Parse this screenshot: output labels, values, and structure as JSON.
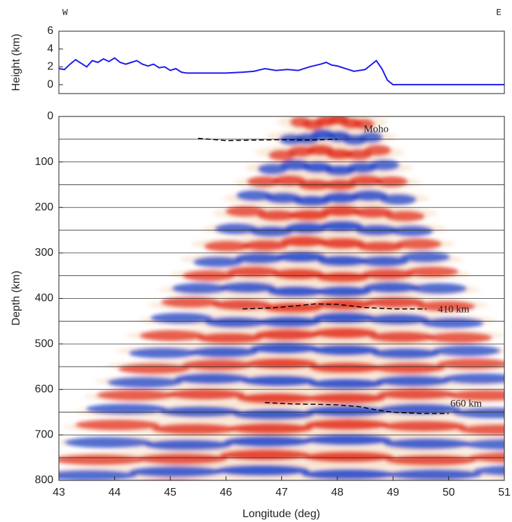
{
  "chart_data": [
    {
      "type": "line",
      "ylabel": "Height (km)",
      "annotations": [
        "W",
        "E"
      ],
      "xlim": [
        43,
        51
      ],
      "ylim": [
        -1,
        6
      ],
      "yticks": [
        0,
        2,
        4,
        6
      ],
      "color": "#1a1aee",
      "x": [
        43.0,
        43.1,
        43.2,
        43.3,
        43.4,
        43.5,
        43.6,
        43.7,
        43.8,
        43.9,
        44.0,
        44.1,
        44.2,
        44.3,
        44.4,
        44.5,
        44.6,
        44.7,
        44.8,
        44.9,
        45.0,
        45.1,
        45.2,
        45.3,
        45.5,
        46.0,
        46.3,
        46.5,
        46.7,
        46.9,
        47.1,
        47.3,
        47.5,
        47.7,
        47.8,
        47.9,
        48.0,
        48.2,
        48.3,
        48.5,
        48.6,
        48.7,
        48.8,
        48.9,
        49.0,
        51.0
      ],
      "values": [
        1.8,
        1.7,
        2.3,
        2.8,
        2.4,
        2.0,
        2.7,
        2.5,
        2.9,
        2.6,
        3.0,
        2.5,
        2.3,
        2.5,
        2.7,
        2.3,
        2.1,
        2.3,
        1.9,
        2.0,
        1.6,
        1.8,
        1.4,
        1.3,
        1.3,
        1.3,
        1.4,
        1.5,
        1.8,
        1.6,
        1.7,
        1.6,
        2.0,
        2.3,
        2.5,
        2.2,
        2.1,
        1.7,
        1.5,
        1.7,
        2.2,
        2.7,
        1.8,
        0.5,
        0,
        0
      ]
    },
    {
      "type": "image",
      "xlabel": "Longitude (deg)",
      "ylabel": "Depth (km)",
      "xlim": [
        43,
        51
      ],
      "ylim": [
        800,
        0
      ],
      "xticks": [
        43,
        44,
        45,
        46,
        47,
        48,
        49,
        50,
        51
      ],
      "yticks": [
        0,
        100,
        200,
        300,
        400,
        500,
        600,
        700,
        800
      ],
      "hlines": [
        50,
        100,
        150,
        200,
        250,
        300,
        350,
        400,
        450,
        500,
        550,
        600,
        650,
        700,
        750
      ],
      "lines": [
        {
          "name": "Moho",
          "color": "#000000",
          "x": [
            45.5,
            46.0,
            46.5,
            47.0,
            47.5,
            48.0
          ],
          "values": [
            48,
            53,
            52,
            51,
            52,
            50
          ]
        },
        {
          "name": "410 km",
          "color": "#000000",
          "x": [
            46.3,
            46.8,
            47.2,
            47.6,
            48.0,
            48.5,
            49.0,
            49.6
          ],
          "values": [
            423,
            421,
            417,
            412,
            413,
            420,
            423,
            423
          ]
        },
        {
          "name": "660 km",
          "color": "#000000",
          "x": [
            46.7,
            47.2,
            47.7,
            48.0,
            48.4,
            48.7,
            49.0,
            49.5,
            50.0
          ],
          "values": [
            629,
            632,
            633,
            634,
            638,
            645,
            650,
            653,
            653
          ]
        }
      ]
    }
  ]
}
